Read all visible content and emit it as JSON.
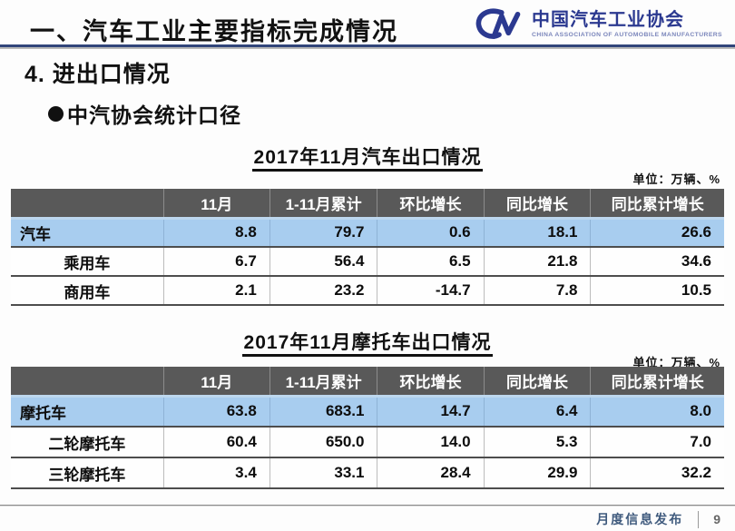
{
  "header": {
    "title": "一、汽车工业主要指标完成情况",
    "logo": {
      "name": "中国汽车工业协会",
      "caption": "CHINA ASSOCIATION OF AUTOMOBILE MANUFACTURERS",
      "mark": "cm-swoosh",
      "color": "#2b3990"
    }
  },
  "section": {
    "heading": "4. 进出口情况",
    "bullet": "中汽协会统计口径"
  },
  "tables": [
    {
      "title": "2017年11月汽车出口情况",
      "unit": "单位：万辆、%",
      "columns": [
        "",
        "11月",
        "1-11月累计",
        "环比增长",
        "同比增长",
        "同比累计增长"
      ],
      "rows": [
        {
          "label": "汽车",
          "highlight": true,
          "values": [
            "8.8",
            "79.7",
            "0.6",
            "18.1",
            "26.6"
          ]
        },
        {
          "label": "乘用车",
          "highlight": false,
          "values": [
            "6.7",
            "56.4",
            "6.5",
            "21.8",
            "34.6"
          ]
        },
        {
          "label": "商用车",
          "highlight": false,
          "values": [
            "2.1",
            "23.2",
            "-14.7",
            "7.8",
            "10.5"
          ]
        }
      ]
    },
    {
      "title": "2017年11月摩托车出口情况",
      "unit": "单位：万辆、%",
      "columns": [
        "",
        "11月",
        "1-11月累计",
        "环比增长",
        "同比增长",
        "同比累计增长"
      ],
      "rows": [
        {
          "label": "摩托车",
          "highlight": true,
          "values": [
            "63.8",
            "683.1",
            "14.7",
            "6.4",
            "8.0"
          ]
        },
        {
          "label": "二轮摩托车",
          "highlight": false,
          "values": [
            "60.4",
            "650.0",
            "14.0",
            "5.3",
            "7.0"
          ]
        },
        {
          "label": "三轮摩托车",
          "highlight": false,
          "values": [
            "3.4",
            "33.1",
            "28.4",
            "29.9",
            "32.2"
          ]
        }
      ]
    }
  ],
  "footer": {
    "label": "月度信息发布",
    "page_number": "9"
  },
  "colors": {
    "header_row_bg": "#595959",
    "highlight_row_bg": "#a8cdef",
    "header_rule": "#31457a",
    "logo_navy": "#2b3990"
  }
}
